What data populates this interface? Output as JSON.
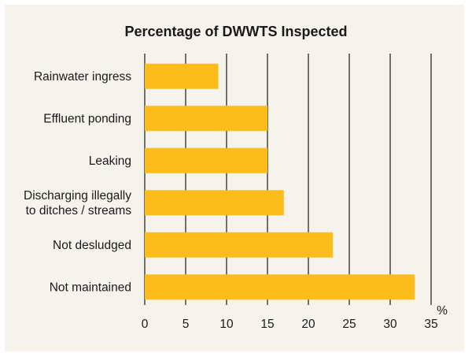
{
  "chart_data": {
    "type": "bar",
    "orientation": "horizontal",
    "title": "Percentage of DWWTS Inspected",
    "categories": [
      [
        "Rainwater ingress"
      ],
      [
        "Effluent ponding"
      ],
      [
        "Leaking"
      ],
      [
        "Discharging illegally",
        "to ditches / streams"
      ],
      [
        "Not desludged"
      ],
      [
        "Not maintained"
      ]
    ],
    "values": [
      9,
      15,
      15,
      17,
      23,
      33
    ],
    "xlim": [
      0,
      35
    ],
    "xticks": [
      0,
      5,
      10,
      15,
      20,
      25,
      30,
      35
    ],
    "xlabel": "%",
    "ylabel": "",
    "grid": "vertical",
    "bar_color": "#fcbc1c"
  }
}
